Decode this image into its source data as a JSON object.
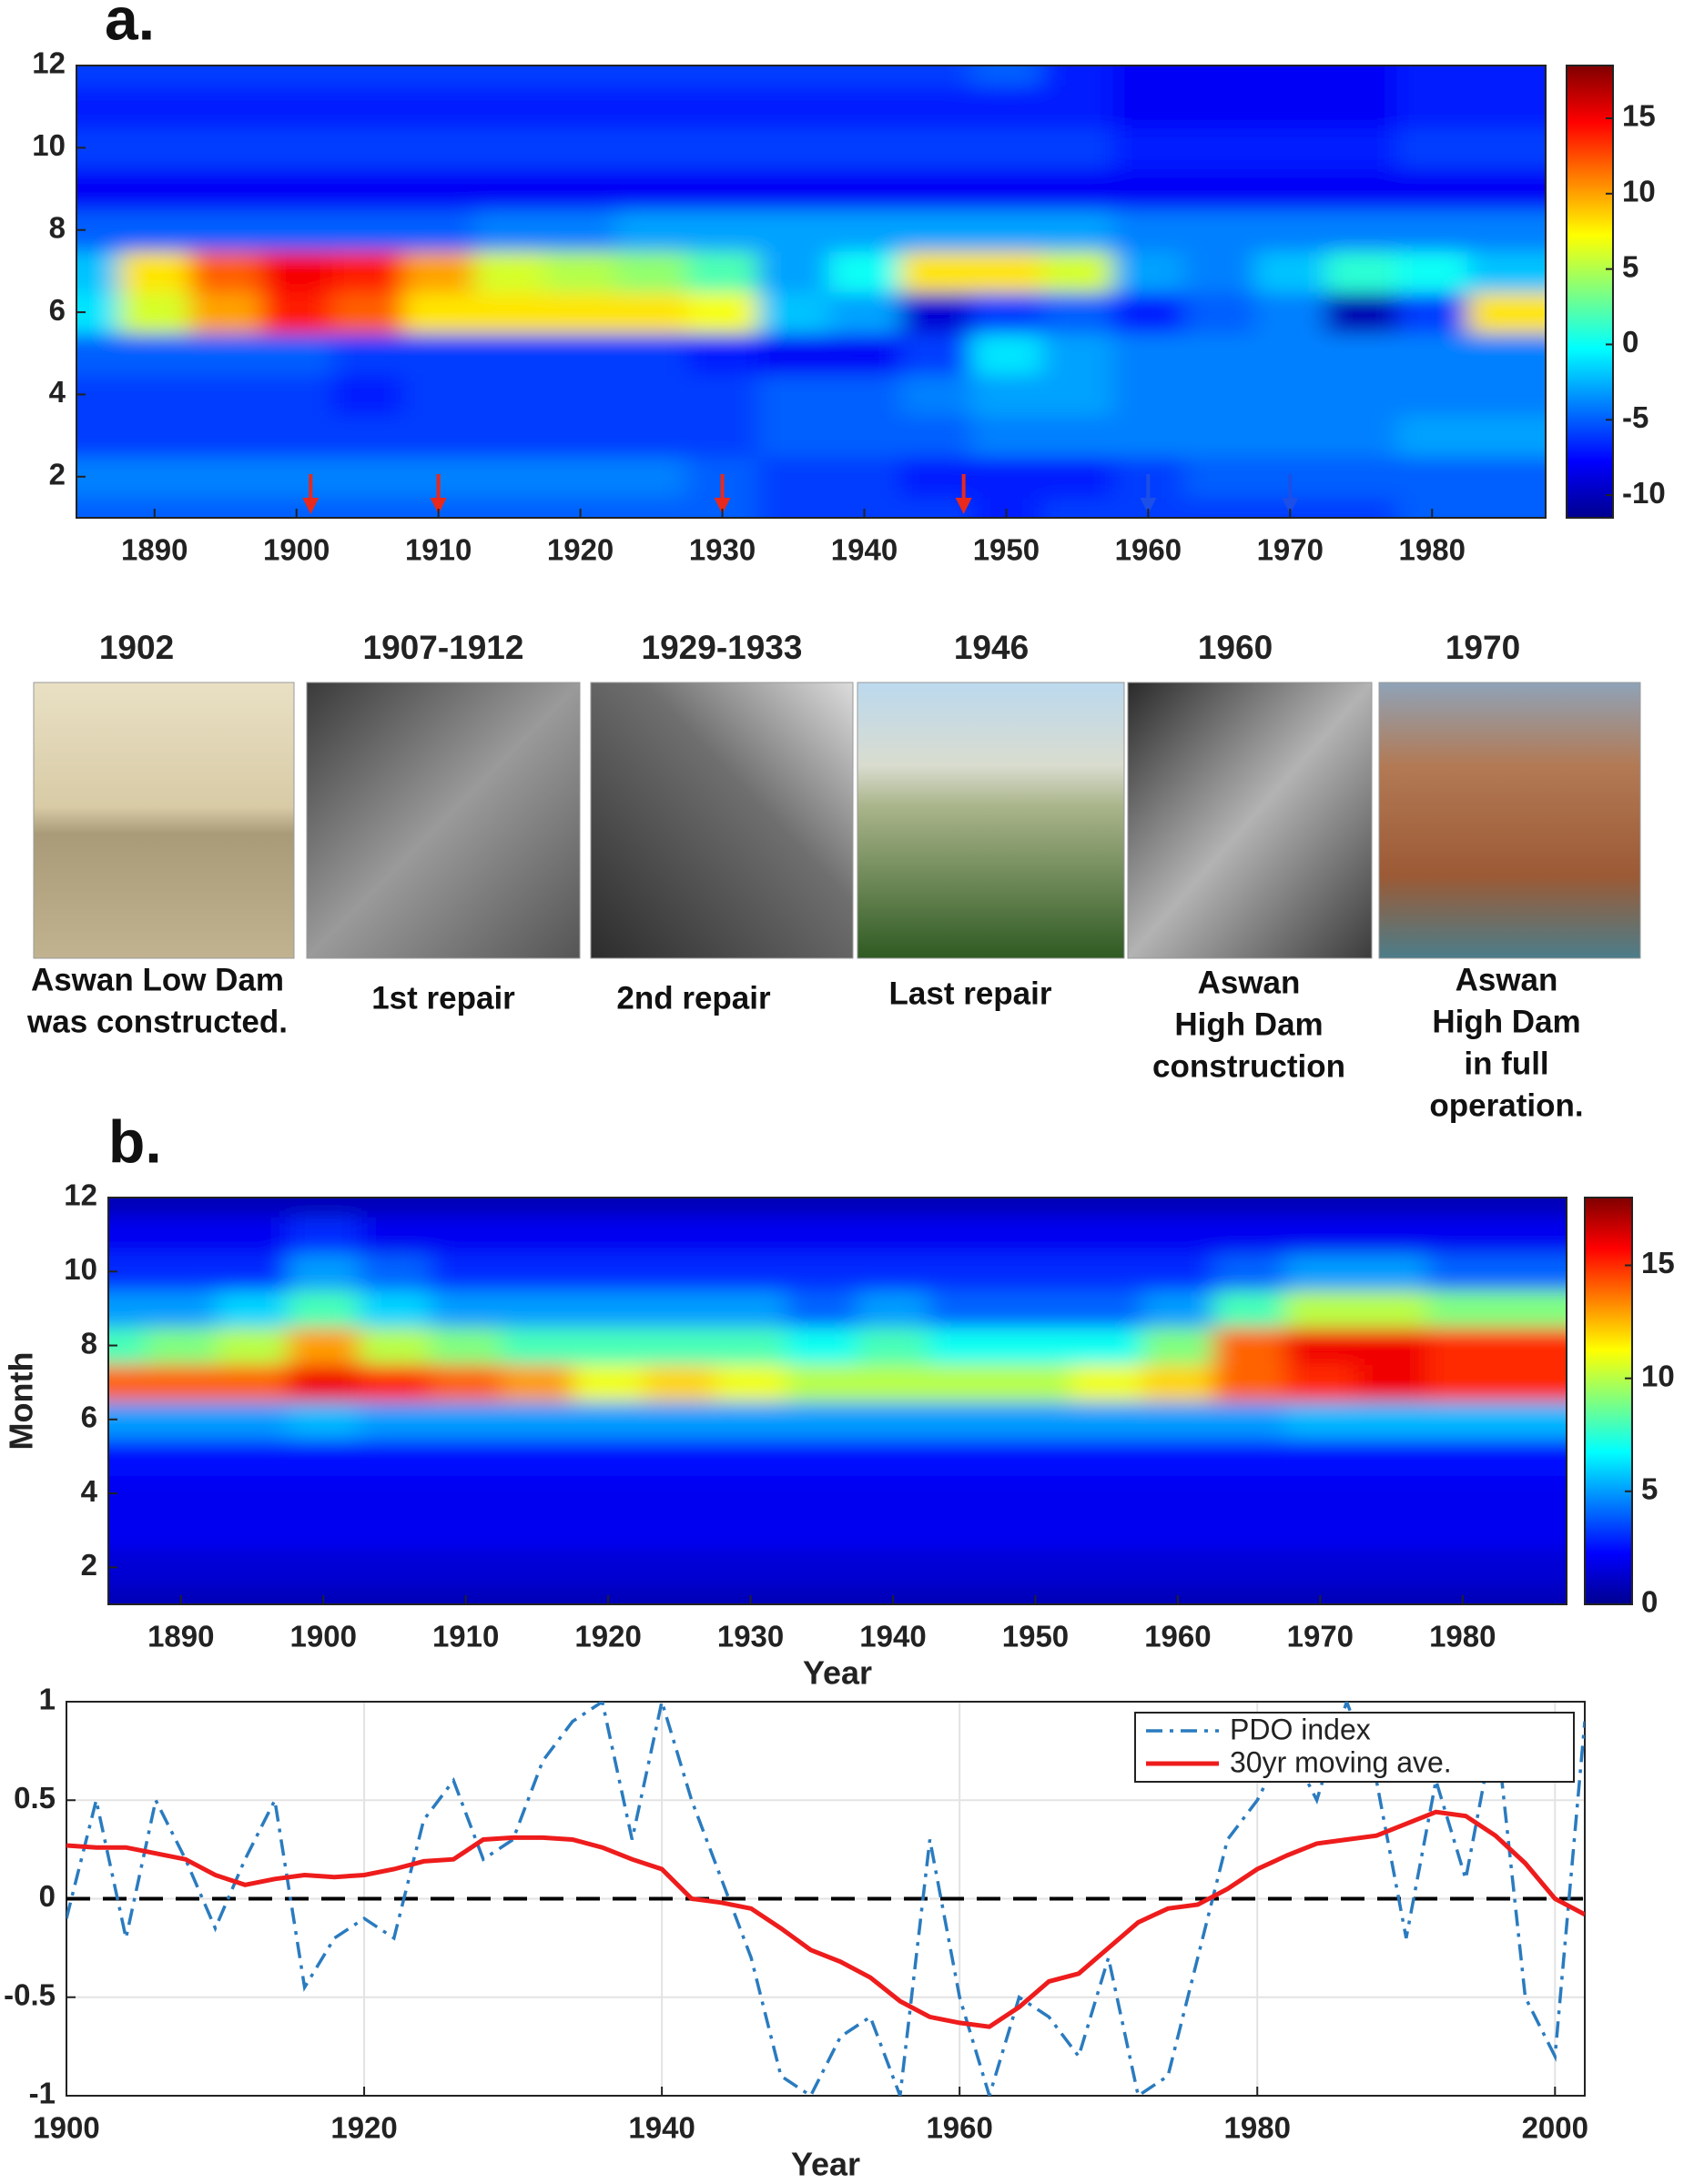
{
  "chart_data": [
    {
      "type": "heatmap",
      "panel_label": "a.",
      "x": [
        1885,
        1890,
        1895,
        1900,
        1905,
        1910,
        1915,
        1920,
        1925,
        1930,
        1935,
        1940,
        1945,
        1950,
        1955,
        1960,
        1965,
        1970,
        1975,
        1980,
        1985
      ],
      "y": [
        1,
        2,
        3,
        4,
        5,
        6,
        7,
        8,
        9,
        10,
        11,
        12
      ],
      "z": [
        [
          -5,
          -5,
          -5,
          -5,
          -5,
          -5,
          -5,
          -5,
          -5,
          -5,
          -6,
          -6,
          -6,
          -7,
          -6,
          -6,
          -6,
          -6,
          -6,
          -5,
          -5
        ],
        [
          -4,
          -4,
          -4,
          -4,
          -4,
          -4,
          -4,
          -4,
          -4,
          -5,
          -6,
          -6,
          -7,
          -7,
          -7,
          -6,
          -5,
          -5,
          -5,
          -5,
          -5
        ],
        [
          -6,
          -6,
          -6,
          -6,
          -6,
          -6,
          -6,
          -6,
          -6,
          -6,
          -5,
          -5,
          -5,
          -4,
          -4,
          -4,
          -4,
          -4,
          -4,
          -3,
          -3
        ],
        [
          -6,
          -6,
          -6,
          -6,
          -7,
          -6,
          -6,
          -6,
          -6,
          -6,
          -5,
          -5,
          -4,
          -3,
          -3,
          -4,
          -4,
          -4,
          -4,
          -4,
          -4
        ],
        [
          -5,
          -5,
          -5,
          -5,
          -6,
          -6,
          -6,
          -6,
          -6,
          -7,
          -8,
          -8,
          -6,
          -1,
          -3,
          -4,
          -4,
          -4,
          -4,
          -4,
          -4
        ],
        [
          -1,
          6,
          10,
          14,
          12,
          8,
          8,
          8,
          8,
          7,
          -2,
          -3,
          -9,
          -6,
          -5,
          -7,
          -5,
          -4,
          -10,
          -6,
          8
        ],
        [
          -2,
          8,
          12,
          15,
          14,
          10,
          6,
          5,
          4,
          2,
          -3,
          0,
          8,
          8,
          6,
          -3,
          -4,
          -2,
          1,
          0,
          -2
        ],
        [
          -5,
          -5,
          -5,
          -5,
          -5,
          -5,
          -4,
          -4,
          -3,
          -3,
          -3,
          -3,
          -3,
          -3,
          -3,
          -4,
          -4,
          -4,
          -4,
          -4,
          -4
        ],
        [
          -8,
          -8,
          -8,
          -8,
          -8,
          -8,
          -8,
          -8,
          -8,
          -8,
          -8,
          -8,
          -8,
          -8,
          -8,
          -8,
          -8,
          -8,
          -8,
          -8,
          -8
        ],
        [
          -6,
          -6,
          -6,
          -6,
          -6,
          -6,
          -6,
          -6,
          -6,
          -6,
          -6,
          -6,
          -6,
          -6,
          -6,
          -7,
          -7,
          -7,
          -7,
          -6,
          -6
        ],
        [
          -7,
          -7,
          -7,
          -7,
          -7,
          -7,
          -7,
          -7,
          -7,
          -7,
          -7,
          -7,
          -7,
          -7,
          -7,
          -8,
          -8,
          -8,
          -8,
          -7,
          -7
        ],
        [
          -6,
          -6,
          -6,
          -6,
          -6,
          -6,
          -6,
          -6,
          -6,
          -6,
          -6,
          -6,
          -6,
          -5,
          -7,
          -8,
          -8,
          -8,
          -8,
          -7,
          -7
        ]
      ],
      "xlim": [
        1884.5,
        1988
      ],
      "ylim": [
        1,
        12
      ],
      "xticks": [
        1890,
        1900,
        1910,
        1920,
        1930,
        1940,
        1950,
        1960,
        1970,
        1980
      ],
      "yticks": [
        2,
        4,
        6,
        8,
        10,
        12
      ],
      "clim": [
        -11.5,
        18.5
      ],
      "cticks": [
        -10,
        -5,
        0,
        5,
        10,
        15
      ],
      "markers": [
        {
          "x": 1901,
          "color": "#e8291c"
        },
        {
          "x": 1910,
          "color": "#e8291c"
        },
        {
          "x": 1930,
          "color": "#e8291c"
        },
        {
          "x": 1947,
          "color": "#e8291c"
        },
        {
          "x": 1960,
          "color": "#1c4ee8"
        },
        {
          "x": 1970,
          "color": "#1c4ee8"
        }
      ]
    },
    {
      "type": "heatmap",
      "panel_label": "b.",
      "xlabel": "Year",
      "ylabel": "Month",
      "x": [
        1885,
        1890,
        1895,
        1900,
        1905,
        1910,
        1915,
        1920,
        1925,
        1930,
        1935,
        1940,
        1945,
        1950,
        1955,
        1960,
        1965,
        1970,
        1975,
        1980,
        1985
      ],
      "y": [
        1,
        2,
        3,
        4,
        5,
        6,
        7,
        8,
        9,
        10,
        11,
        12
      ],
      "z": [
        [
          1,
          1,
          1,
          1,
          1,
          1,
          1,
          1,
          1,
          1,
          1,
          1,
          1,
          1,
          1,
          1,
          1,
          1,
          1,
          1,
          1
        ],
        [
          1.5,
          1.5,
          1.5,
          1.5,
          1.5,
          1.5,
          1.5,
          1.5,
          1.5,
          1.5,
          1.5,
          1.5,
          1.5,
          1.5,
          1.5,
          1.5,
          1.5,
          1.5,
          1.5,
          1.5,
          1.5
        ],
        [
          2,
          2,
          2,
          2,
          2,
          2,
          2,
          2,
          2,
          2,
          2,
          2,
          2,
          2,
          2,
          2,
          2,
          2,
          2,
          2,
          2
        ],
        [
          2,
          2,
          2,
          2,
          2,
          2,
          2,
          2,
          2,
          2,
          2,
          2,
          2,
          2,
          2,
          2,
          2,
          2,
          2,
          2,
          2
        ],
        [
          2.5,
          2.5,
          2.5,
          2.5,
          2.5,
          2.5,
          2.5,
          2.5,
          2.5,
          2.5,
          2.5,
          2.5,
          2.5,
          2.5,
          2.5,
          2.5,
          2.5,
          2.5,
          2.5,
          2.5,
          2.5
        ],
        [
          5,
          5,
          5,
          5.5,
          5,
          5,
          5,
          5,
          5,
          5,
          5,
          5,
          5,
          5,
          5,
          5,
          5,
          5.5,
          5.5,
          5.5,
          5.5
        ],
        [
          14,
          14,
          14,
          16,
          15,
          14,
          13,
          11,
          12,
          11,
          10,
          10,
          10,
          10,
          11,
          12,
          14,
          15,
          16,
          15,
          15
        ],
        [
          8,
          9,
          10,
          13,
          10,
          9,
          8,
          8,
          8,
          8,
          7,
          8,
          7,
          7,
          7,
          9,
          14,
          16,
          16,
          15,
          15
        ],
        [
          5,
          5,
          6,
          8,
          6,
          5,
          5,
          5,
          5,
          5,
          4,
          5,
          4,
          4,
          4,
          5,
          8,
          10,
          10,
          9,
          9
        ],
        [
          3,
          3,
          3,
          5,
          4,
          3,
          3,
          3,
          3,
          3,
          3,
          3,
          3,
          3,
          3,
          3,
          4,
          5,
          5,
          4,
          4
        ],
        [
          2,
          2,
          2,
          3,
          2,
          2,
          2,
          2,
          2,
          2,
          2,
          2,
          2,
          2,
          2,
          2,
          2,
          2,
          2,
          2,
          2
        ],
        [
          1,
          1,
          1,
          1,
          1,
          1,
          1,
          1,
          1,
          1,
          1,
          1,
          1,
          1,
          1,
          1,
          1,
          1,
          1,
          1,
          1
        ]
      ],
      "xlim": [
        1884.9,
        1987.3
      ],
      "ylim": [
        1,
        12
      ],
      "xticks": [
        1890,
        1900,
        1910,
        1920,
        1930,
        1940,
        1950,
        1960,
        1970,
        1980
      ],
      "yticks": [
        2,
        4,
        6,
        8,
        10,
        12
      ],
      "clim": [
        0,
        18
      ],
      "cticks": [
        0,
        5,
        10,
        15
      ]
    },
    {
      "type": "line",
      "xlabel": "Year",
      "grid": true,
      "hline": 0,
      "x": [
        1900,
        1902,
        1904,
        1906,
        1908,
        1910,
        1912,
        1914,
        1916,
        1918,
        1920,
        1922,
        1924,
        1926,
        1928,
        1930,
        1932,
        1934,
        1936,
        1938,
        1940,
        1942,
        1944,
        1946,
        1948,
        1950,
        1952,
        1954,
        1956,
        1958,
        1960,
        1962,
        1964,
        1966,
        1968,
        1970,
        1972,
        1974,
        1976,
        1978,
        1980,
        1982,
        1984,
        1986,
        1988,
        1990,
        1992,
        1994,
        1996,
        1998,
        2000,
        2002
      ],
      "series": [
        {
          "name": "PDO index",
          "color": "#2a7bbf",
          "dash": "dashdot",
          "values": [
            -0.1,
            0.5,
            -0.2,
            0.5,
            0.2,
            -0.15,
            0.2,
            0.5,
            -0.45,
            -0.2,
            -0.1,
            -0.2,
            0.4,
            0.6,
            0.2,
            0.3,
            0.7,
            0.9,
            1.0,
            0.3,
            1.0,
            0.5,
            0.1,
            -0.3,
            -0.9,
            -1.0,
            -0.7,
            -0.6,
            -1.0,
            0.3,
            -0.5,
            -1.0,
            -0.5,
            -0.6,
            -0.8,
            -0.3,
            -1.0,
            -0.9,
            -0.3,
            0.3,
            0.5,
            0.8,
            0.5,
            1.0,
            0.6,
            -0.2,
            0.6,
            0.1,
            0.9,
            -0.5,
            -0.8,
            0.9
          ]
        },
        {
          "name": "30yr moving ave.",
          "color": "#ee1c1c",
          "dash": "solid",
          "values": [
            0.27,
            0.26,
            0.26,
            0.23,
            0.2,
            0.12,
            0.07,
            0.1,
            0.12,
            0.11,
            0.12,
            0.15,
            0.19,
            0.2,
            0.3,
            0.31,
            0.31,
            0.3,
            0.26,
            0.2,
            0.15,
            0.0,
            -0.02,
            -0.05,
            -0.15,
            -0.26,
            -0.32,
            -0.4,
            -0.52,
            -0.6,
            -0.63,
            -0.65,
            -0.55,
            -0.42,
            -0.38,
            -0.25,
            -0.12,
            -0.05,
            -0.03,
            0.05,
            0.15,
            0.22,
            0.28,
            0.3,
            0.32,
            0.38,
            0.44,
            0.42,
            0.32,
            0.18,
            0.0,
            -0.08
          ]
        }
      ],
      "xlim": [
        1900,
        2002
      ],
      "ylim": [
        -1,
        1
      ],
      "xticks": [
        1900,
        1920,
        1940,
        1960,
        1980,
        2000
      ],
      "yticks": [
        -1,
        -0.5,
        0,
        0.5,
        1
      ],
      "legend": "upper right"
    }
  ],
  "photos": [
    {
      "year": "1902",
      "color": "#e8291c",
      "caption": [
        "Aswan Low Dam",
        "was constructed."
      ]
    },
    {
      "year": "1907-1912",
      "color": "#e8291c",
      "caption": [
        "1st repair"
      ]
    },
    {
      "year": "1929-1933",
      "color": "#e8291c",
      "caption": [
        "2nd repair"
      ]
    },
    {
      "year": "1946",
      "color": "#e8291c",
      "caption": [
        "Last repair"
      ]
    },
    {
      "year": "1960",
      "color": "#1c4ee8",
      "caption": [
        "Aswan",
        "High Dam",
        "construction"
      ]
    },
    {
      "year": "1970",
      "color": "#1c4ee8",
      "caption": [
        "Aswan",
        "High Dam",
        "in full",
        "operation."
      ]
    }
  ]
}
